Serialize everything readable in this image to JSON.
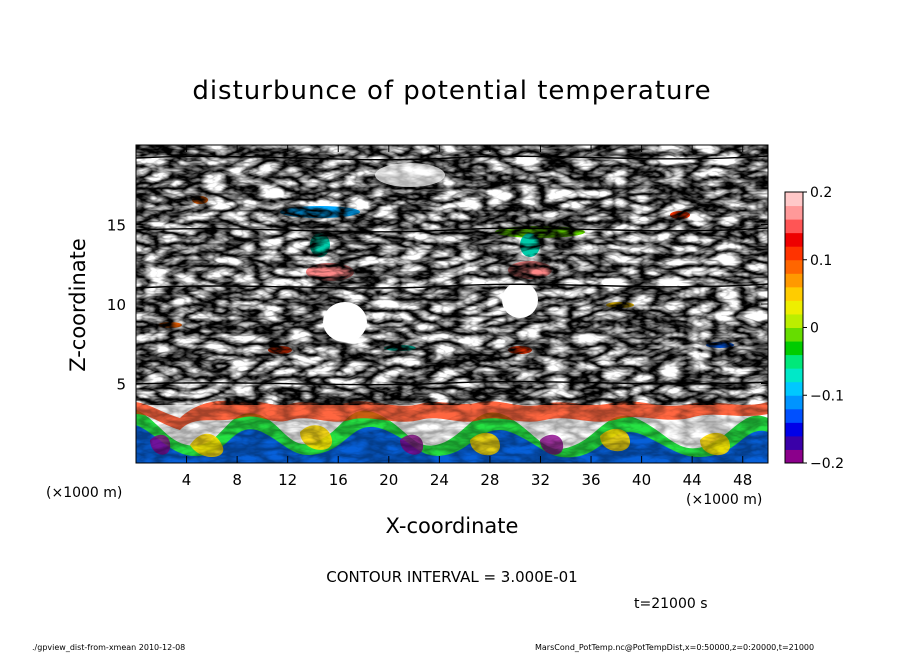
{
  "chart_data": {
    "type": "heatmap",
    "title": "disturbunce of potential temperature",
    "xlabel": "X-coordinate",
    "ylabel": "Z-coordinate",
    "x_unit_label": "(×1000 m)",
    "x_ticks": [
      4,
      8,
      12,
      16,
      20,
      24,
      28,
      32,
      36,
      40,
      44,
      48
    ],
    "y_ticks": [
      5,
      10,
      15
    ],
    "xlim": [
      0,
      50
    ],
    "ylim": [
      0,
      20
    ],
    "colorbar": {
      "ticks": [
        "0.2",
        "0.1",
        "0",
        "−0.1",
        "−0.2"
      ],
      "tick_values": [
        0.2,
        0.1,
        0,
        -0.1,
        -0.2
      ],
      "range": [
        -0.2,
        0.2
      ],
      "colors": [
        "#8b008b",
        "#3a00a8",
        "#0000e8",
        "#0050ff",
        "#0094ff",
        "#00c8ff",
        "#00e8c8",
        "#00e87a",
        "#00cc00",
        "#66dd00",
        "#bbee00",
        "#eeee00",
        "#ffcc00",
        "#ff9900",
        "#ff6600",
        "#ff3300",
        "#ee0000",
        "#ff5555",
        "#ff9999",
        "#ffc8c8"
      ]
    },
    "contour_interval_text": "CONTOUR INTERVAL = 3.000E-01",
    "time_label": "t=21000 s"
  },
  "footer": {
    "left": "./gpview_dist-from-xmean   2010-12-08",
    "right": "MarsCond_PotTemp.nc@PotTempDist,x=0:50000,z=0:20000,t=21000"
  }
}
